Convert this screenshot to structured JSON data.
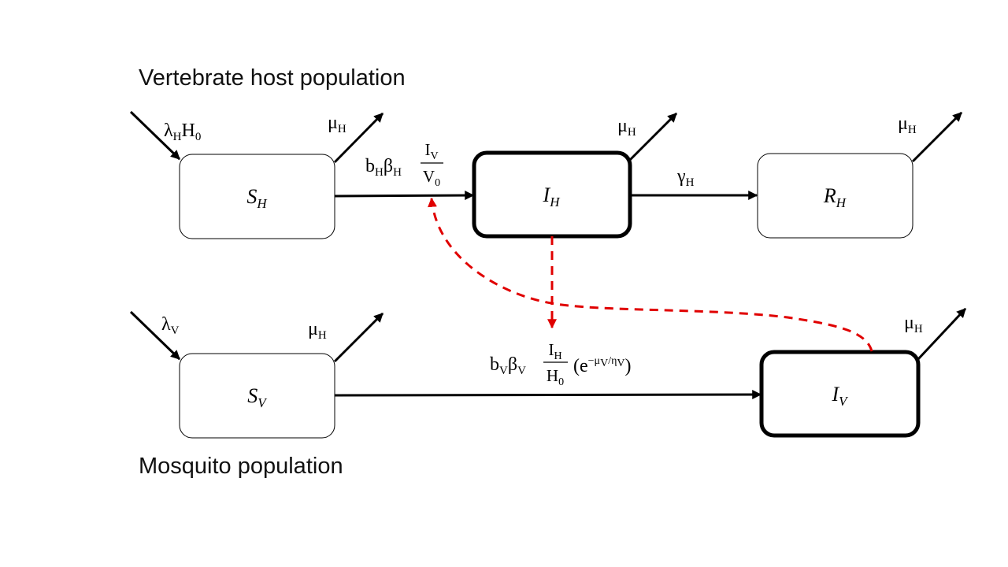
{
  "labels": {
    "host_population": "Vertebrate host population",
    "mosquito_population": "Mosquito population"
  },
  "compartments": {
    "sh": {
      "main": "S",
      "sub": "H"
    },
    "ih": {
      "main": "I",
      "sub": "H"
    },
    "rh": {
      "main": "R",
      "sub": "H"
    },
    "sv": {
      "main": "S",
      "sub": "V"
    },
    "iv": {
      "main": "I",
      "sub": "V"
    }
  },
  "rates": {
    "lambda_h": {
      "sym": "λ",
      "sub": "H",
      "tail": "H",
      "tail_sub": "0"
    },
    "lambda_v": {
      "sym": "λ",
      "sub": "V"
    },
    "mu": {
      "sym": "μ",
      "sub": "H"
    },
    "gamma_h": {
      "sym": "γ",
      "sub": "H"
    },
    "infection_h": {
      "b": "b",
      "b_sub": "H",
      "beta": "β",
      "beta_sub": "H",
      "num": "I",
      "num_sub": "V",
      "den": "V",
      "den_sub": "0"
    },
    "infection_v": {
      "b": "b",
      "b_sub": "V",
      "beta": "β",
      "beta_sub": "V",
      "num": "I",
      "num_sub": "H",
      "den": "H",
      "den_sub": "0",
      "open": "(",
      "e": "e",
      "exp": "−μ",
      "exp_sub1": "V",
      "exp_mid": "/η",
      "exp_sub2": "V",
      "close": ")"
    }
  },
  "colors": {
    "dashed_influence": "#e00000",
    "stroke": "#000000"
  }
}
